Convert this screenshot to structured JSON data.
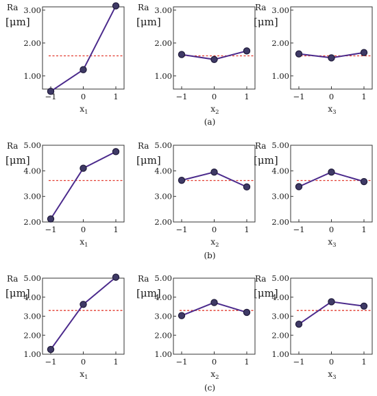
{
  "colors": {
    "line": "#4b2a8c",
    "marker_fill": "#3f3a66",
    "marker_stroke": "#1f1a3a",
    "mean_line": "#e23a2e",
    "axis": "#333333"
  },
  "chart_data": [
    {
      "group": "a",
      "caption": "(a)",
      "ylabel_top": "Ra",
      "ylabel_unit": "[μm]",
      "ylim": [
        0.6,
        3.1
      ],
      "yticks": [
        1.0,
        2.0,
        3.0
      ],
      "ytick_labels": [
        "1.00",
        "2.00",
        "3.00"
      ],
      "mean": 1.61,
      "charts": [
        {
          "type": "line",
          "xlabel": "x1",
          "x": [
            -1,
            0,
            1
          ],
          "y": [
            0.53,
            1.19,
            3.13
          ],
          "xtick_labels": [
            "−1",
            "0",
            "1"
          ]
        },
        {
          "type": "line",
          "xlabel": "x2",
          "x": [
            -1,
            0,
            1
          ],
          "y": [
            1.65,
            1.5,
            1.76
          ],
          "xtick_labels": [
            "−1",
            "0",
            "1"
          ]
        },
        {
          "type": "line",
          "xlabel": "x3",
          "x": [
            -1,
            0,
            1
          ],
          "y": [
            1.67,
            1.55,
            1.71
          ],
          "xtick_labels": [
            "−1",
            "0",
            "1"
          ]
        }
      ]
    },
    {
      "group": "b",
      "caption": "(b)",
      "ylabel_top": "Ra",
      "ylabel_unit": "[μm]",
      "ylim": [
        2.0,
        5.0
      ],
      "yticks": [
        2.0,
        3.0,
        4.0,
        5.0
      ],
      "ytick_labels": [
        "2.00",
        "3.00",
        "4.00",
        "5.00"
      ],
      "mean": 3.62,
      "charts": [
        {
          "type": "line",
          "xlabel": "x1",
          "x": [
            -1,
            0,
            1
          ],
          "y": [
            2.12,
            4.1,
            4.75
          ],
          "xtick_labels": [
            "−1",
            "0",
            "1"
          ]
        },
        {
          "type": "line",
          "xlabel": "x2",
          "x": [
            -1,
            0,
            1
          ],
          "y": [
            3.63,
            3.95,
            3.37
          ],
          "xtick_labels": [
            "−1",
            "0",
            "1"
          ]
        },
        {
          "type": "line",
          "xlabel": "x3",
          "x": [
            -1,
            0,
            1
          ],
          "y": [
            3.38,
            3.95,
            3.58
          ],
          "xtick_labels": [
            "−1",
            "0",
            "1"
          ]
        }
      ]
    },
    {
      "group": "c",
      "caption": "(c)",
      "ylabel_top": "Ra",
      "ylabel_unit": "[μm]",
      "ylim": [
        1.0,
        5.0
      ],
      "yticks": [
        1.0,
        2.0,
        3.0,
        4.0,
        5.0
      ],
      "ytick_labels": [
        "1.00",
        "2.00",
        "3.00",
        "4.00",
        "5.00"
      ],
      "mean": 3.3,
      "charts": [
        {
          "type": "line",
          "xlabel": "x1",
          "x": [
            -1,
            0,
            1
          ],
          "y": [
            1.25,
            3.62,
            5.05
          ],
          "xtick_labels": [
            "−1",
            "0",
            "1"
          ]
        },
        {
          "type": "line",
          "xlabel": "x2",
          "x": [
            -1,
            0,
            1
          ],
          "y": [
            3.03,
            3.72,
            3.2
          ],
          "xtick_labels": [
            "−1",
            "0",
            "1"
          ]
        },
        {
          "type": "line",
          "xlabel": "x3",
          "x": [
            -1,
            0,
            1
          ],
          "y": [
            2.58,
            3.76,
            3.53
          ],
          "xtick_labels": [
            "−1",
            "0",
            "1"
          ]
        }
      ]
    }
  ]
}
